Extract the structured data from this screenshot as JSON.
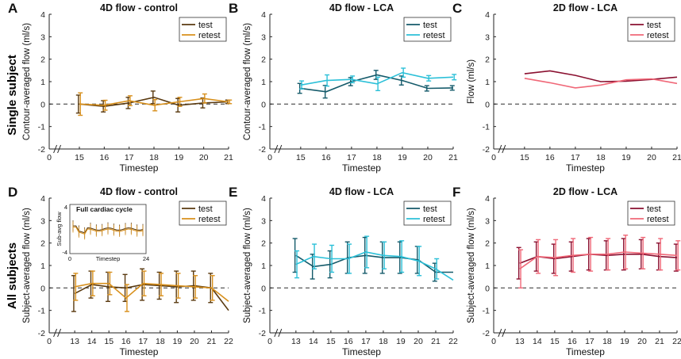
{
  "row_labels": [
    "Single subject",
    "All subjects"
  ],
  "legend_test": "test",
  "legend_retest": "retest",
  "colors": {
    "control_test": "#5a3a10",
    "control_retest": "#d8901c",
    "lca4d_test": "#145a6a",
    "lca4d_retest": "#2cc0d8",
    "lca2d_test": "#8a1030",
    "lca2d_retest": "#f06878"
  },
  "chart_data": [
    {
      "panel": "A",
      "type": "line",
      "title": "4D flow - control",
      "xlabel": "Timestep",
      "ylabel": "Contour-averaged flow (ml/s)",
      "ylim": [
        -2,
        4
      ],
      "yticks": [
        -2,
        -1,
        0,
        1,
        2,
        3,
        4
      ],
      "xticks": [
        0,
        15,
        16,
        17,
        18,
        19,
        20,
        21
      ],
      "x_break": true,
      "xlim_range": [
        15,
        21
      ],
      "x": [
        15,
        16,
        17,
        18,
        19,
        20,
        21
      ],
      "series": [
        {
          "name": "test",
          "color_key": "control_test",
          "values": [
            0.0,
            -0.1,
            0.05,
            0.3,
            -0.05,
            0.05,
            0.1
          ],
          "errors": [
            0.4,
            0.25,
            0.25,
            0.28,
            0.3,
            0.22,
            0.08
          ]
        },
        {
          "name": "retest",
          "color_key": "control_retest",
          "values": [
            0.0,
            -0.05,
            0.15,
            -0.05,
            0.1,
            0.25,
            0.1
          ],
          "errors": [
            0.5,
            0.22,
            0.22,
            0.25,
            0.2,
            0.2,
            0.08
          ]
        }
      ]
    },
    {
      "panel": "B",
      "type": "line",
      "title": "4D flow - LCA",
      "xlabel": "Timestep",
      "ylabel": "Contour-averaged flow (ml/s)",
      "ylim": [
        -2,
        4
      ],
      "yticks": [
        -2,
        -1,
        0,
        1,
        2,
        3,
        4
      ],
      "xticks": [
        0,
        15,
        16,
        17,
        18,
        19,
        20,
        21
      ],
      "x_break": true,
      "xlim_range": [
        15,
        21
      ],
      "x": [
        15,
        16,
        17,
        18,
        19,
        20,
        21
      ],
      "series": [
        {
          "name": "test",
          "color_key": "lca4d_test",
          "values": [
            0.7,
            0.55,
            1.0,
            1.3,
            1.05,
            0.7,
            0.72
          ],
          "errors": [
            0.22,
            0.28,
            0.18,
            0.2,
            0.2,
            0.12,
            0.1
          ]
        },
        {
          "name": "retest",
          "color_key": "lca4d_retest",
          "values": [
            0.85,
            1.05,
            1.1,
            0.9,
            1.4,
            1.15,
            1.2
          ],
          "errors": [
            0.18,
            0.25,
            0.15,
            0.3,
            0.2,
            0.12,
            0.12
          ]
        }
      ]
    },
    {
      "panel": "C",
      "type": "line",
      "title": "2D flow - LCA",
      "xlabel": "Timestep",
      "ylabel": "Flow (ml/s)",
      "ylim": [
        -2,
        4
      ],
      "yticks": [
        -2,
        -1,
        0,
        1,
        2,
        3,
        4
      ],
      "xticks": [
        0,
        15,
        16,
        17,
        18,
        19,
        20,
        21
      ],
      "x_break": true,
      "xlim_range": [
        15,
        21
      ],
      "x": [
        15,
        16,
        17,
        18,
        19,
        20,
        21
      ],
      "series": [
        {
          "name": "test",
          "color_key": "lca2d_test",
          "values": [
            1.35,
            1.48,
            1.28,
            1.0,
            1.02,
            1.1,
            1.2
          ],
          "errors": []
        },
        {
          "name": "retest",
          "color_key": "lca2d_retest",
          "values": [
            1.15,
            0.95,
            0.72,
            0.85,
            1.08,
            1.12,
            0.92
          ],
          "errors": []
        }
      ]
    },
    {
      "panel": "D",
      "type": "line",
      "title": "4D flow - control",
      "xlabel": "Timestep",
      "ylabel": "Subject-averaged flow (ml/s)",
      "ylim": [
        -2,
        4
      ],
      "yticks": [
        -2,
        -1,
        0,
        1,
        2,
        3,
        4
      ],
      "xticks": [
        0,
        13,
        14,
        15,
        16,
        17,
        18,
        19,
        20,
        21,
        22
      ],
      "x_break": true,
      "xlim_range": [
        13,
        22
      ],
      "x": [
        13,
        14,
        15,
        16,
        17,
        18,
        19,
        20,
        21,
        22
      ],
      "series": [
        {
          "name": "test",
          "color_key": "control_test",
          "values": [
            -0.25,
            0.15,
            0.05,
            0.0,
            0.15,
            0.1,
            0.05,
            0.1,
            0.0,
            -1.0
          ],
          "errors": [
            0.8,
            0.6,
            0.65,
            0.6,
            0.7,
            0.6,
            0.7,
            0.65,
            0.65,
            0.0
          ]
        },
        {
          "name": "retest",
          "color_key": "control_retest",
          "values": [
            0.05,
            0.2,
            0.2,
            -0.45,
            0.2,
            0.15,
            0.1,
            0.05,
            0.0,
            -0.6
          ],
          "errors": [
            0.6,
            0.55,
            0.5,
            0.6,
            0.55,
            0.5,
            0.55,
            0.5,
            0.55,
            0.0
          ]
        }
      ],
      "inset": {
        "title": "Full cardiac cycle",
        "xlabel": "Timestep",
        "ylabel": "Sub-avg flow",
        "yticks": [
          -4,
          4
        ],
        "xticks": [
          0,
          24
        ]
      }
    },
    {
      "panel": "E",
      "type": "line",
      "title": "4D flow - LCA",
      "xlabel": "Timestep",
      "ylabel": "Subject-averaged flow (ml/s)",
      "ylim": [
        -2,
        4
      ],
      "yticks": [
        -2,
        -1,
        0,
        1,
        2,
        3,
        4
      ],
      "xticks": [
        0,
        13,
        14,
        15,
        16,
        17,
        18,
        19,
        20,
        21,
        22
      ],
      "x_break": true,
      "xlim_range": [
        13,
        22
      ],
      "x": [
        13,
        14,
        15,
        16,
        17,
        18,
        19,
        20,
        21,
        22
      ],
      "series": [
        {
          "name": "test",
          "color_key": "lca4d_test",
          "values": [
            1.45,
            0.95,
            1.05,
            1.35,
            1.45,
            1.35,
            1.35,
            1.25,
            0.7,
            0.7
          ],
          "errors": [
            0.75,
            0.55,
            0.6,
            0.7,
            0.8,
            0.7,
            0.7,
            0.6,
            0.4,
            0.0
          ]
        },
        {
          "name": "retest",
          "color_key": "lca4d_retest",
          "values": [
            1.05,
            1.4,
            1.3,
            1.3,
            1.6,
            1.45,
            1.4,
            1.2,
            0.85,
            0.35
          ],
          "errors": [
            0.6,
            0.55,
            0.6,
            0.65,
            0.7,
            0.6,
            0.7,
            0.65,
            0.45,
            0.0
          ]
        }
      ]
    },
    {
      "panel": "F",
      "type": "line",
      "title": "2D flow - LCA",
      "xlabel": "Timestep",
      "ylabel": "Subject-averaged flow (ml/s)",
      "ylim": [
        -2,
        4
      ],
      "yticks": [
        -2,
        -1,
        0,
        1,
        2,
        3,
        4
      ],
      "xticks": [
        0,
        13,
        14,
        15,
        16,
        17,
        18,
        19,
        20,
        21,
        22
      ],
      "x_break": true,
      "xlim_range": [
        13,
        22
      ],
      "x": [
        13,
        14,
        15,
        16,
        17,
        18,
        19,
        20,
        21,
        22
      ],
      "series": [
        {
          "name": "test",
          "color_key": "lca2d_test",
          "values": [
            1.1,
            1.4,
            1.3,
            1.4,
            1.5,
            1.45,
            1.5,
            1.5,
            1.4,
            1.35
          ],
          "errors": [
            0.7,
            0.65,
            0.65,
            0.65,
            0.7,
            0.65,
            0.7,
            0.65,
            0.6,
            0.6
          ]
        },
        {
          "name": "retest",
          "color_key": "lca2d_retest",
          "values": [
            0.85,
            1.4,
            1.35,
            1.45,
            1.5,
            1.5,
            1.6,
            1.55,
            1.5,
            1.45
          ],
          "errors": [
            0.85,
            0.75,
            0.8,
            0.75,
            0.75,
            0.7,
            0.75,
            0.7,
            0.7,
            0.65
          ]
        }
      ]
    }
  ]
}
